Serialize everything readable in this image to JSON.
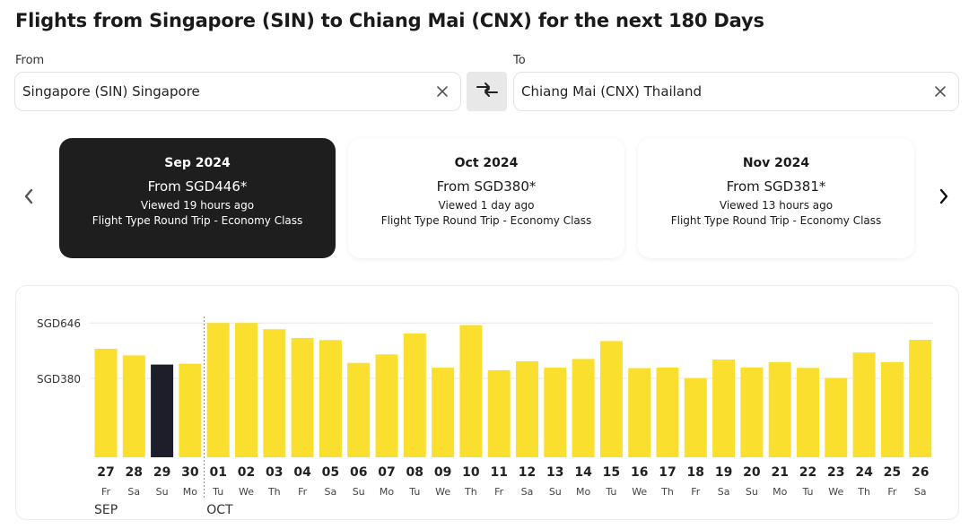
{
  "page": {
    "title": "Flights from Singapore (SIN) to Chiang Mai (CNX) for the next 180 Days"
  },
  "search": {
    "from_label": "From",
    "from_value": "Singapore (SIN) Singapore",
    "to_label": "To",
    "to_value": "Chiang Mai (CNX) Thailand"
  },
  "icons": {
    "clear": "close-icon",
    "swap": "swap-arrows-icon",
    "prev": "chevron-left-icon",
    "next": "chevron-right-icon"
  },
  "months": [
    {
      "month": "Sep 2024",
      "price": "From SGD446*",
      "viewed": "Viewed 19 hours ago",
      "type": "Flight Type Round Trip - Economy Class",
      "selected": true
    },
    {
      "month": "Oct 2024",
      "price": "From SGD380*",
      "viewed": "Viewed 1 day ago",
      "type": "Flight Type Round Trip - Economy Class",
      "selected": false
    },
    {
      "month": "Nov 2024",
      "price": "From SGD381*",
      "viewed": "Viewed 13 hours ago",
      "type": "Flight Type Round Trip - Economy Class",
      "selected": false
    }
  ],
  "colors": {
    "bar": "#fbdf2e",
    "bar_selected": "#1e1e2a",
    "card_active": "#1e1e1e",
    "gridline": "#e6e6e6"
  },
  "chart_data": {
    "type": "bar",
    "ytick_labels": [
      "SGD646",
      "SGD380"
    ],
    "ytick_values": [
      646,
      380
    ],
    "ylim": [
      0,
      660
    ],
    "grid": true,
    "selected_index": 2,
    "month_labels": [
      {
        "label": "SEP",
        "index": 0
      },
      {
        "label": "OCT",
        "index": 4
      }
    ],
    "days": [
      "27",
      "28",
      "29",
      "30",
      "01",
      "02",
      "03",
      "04",
      "05",
      "06",
      "07",
      "08",
      "09",
      "10",
      "11",
      "12",
      "13",
      "14",
      "15",
      "16",
      "17",
      "18",
      "19",
      "20",
      "21",
      "22",
      "23",
      "24",
      "25",
      "26"
    ],
    "weekdays": [
      "Fr",
      "Sa",
      "Su",
      "Mo",
      "Tu",
      "We",
      "Th",
      "Fr",
      "Sa",
      "Su",
      "Mo",
      "Tu",
      "We",
      "Th",
      "Fr",
      "Sa",
      "Su",
      "Mo",
      "Tu",
      "We",
      "Th",
      "Fr",
      "Sa",
      "Su",
      "Mo",
      "Tu",
      "We",
      "Th",
      "Fr",
      "Sa"
    ],
    "values": [
      522,
      490,
      446,
      450,
      646,
      646,
      616,
      574,
      564,
      454,
      495,
      596,
      431,
      636,
      419,
      462,
      431,
      473,
      559,
      429,
      432,
      380,
      470,
      432,
      458,
      430,
      381,
      504,
      458,
      565
    ]
  }
}
